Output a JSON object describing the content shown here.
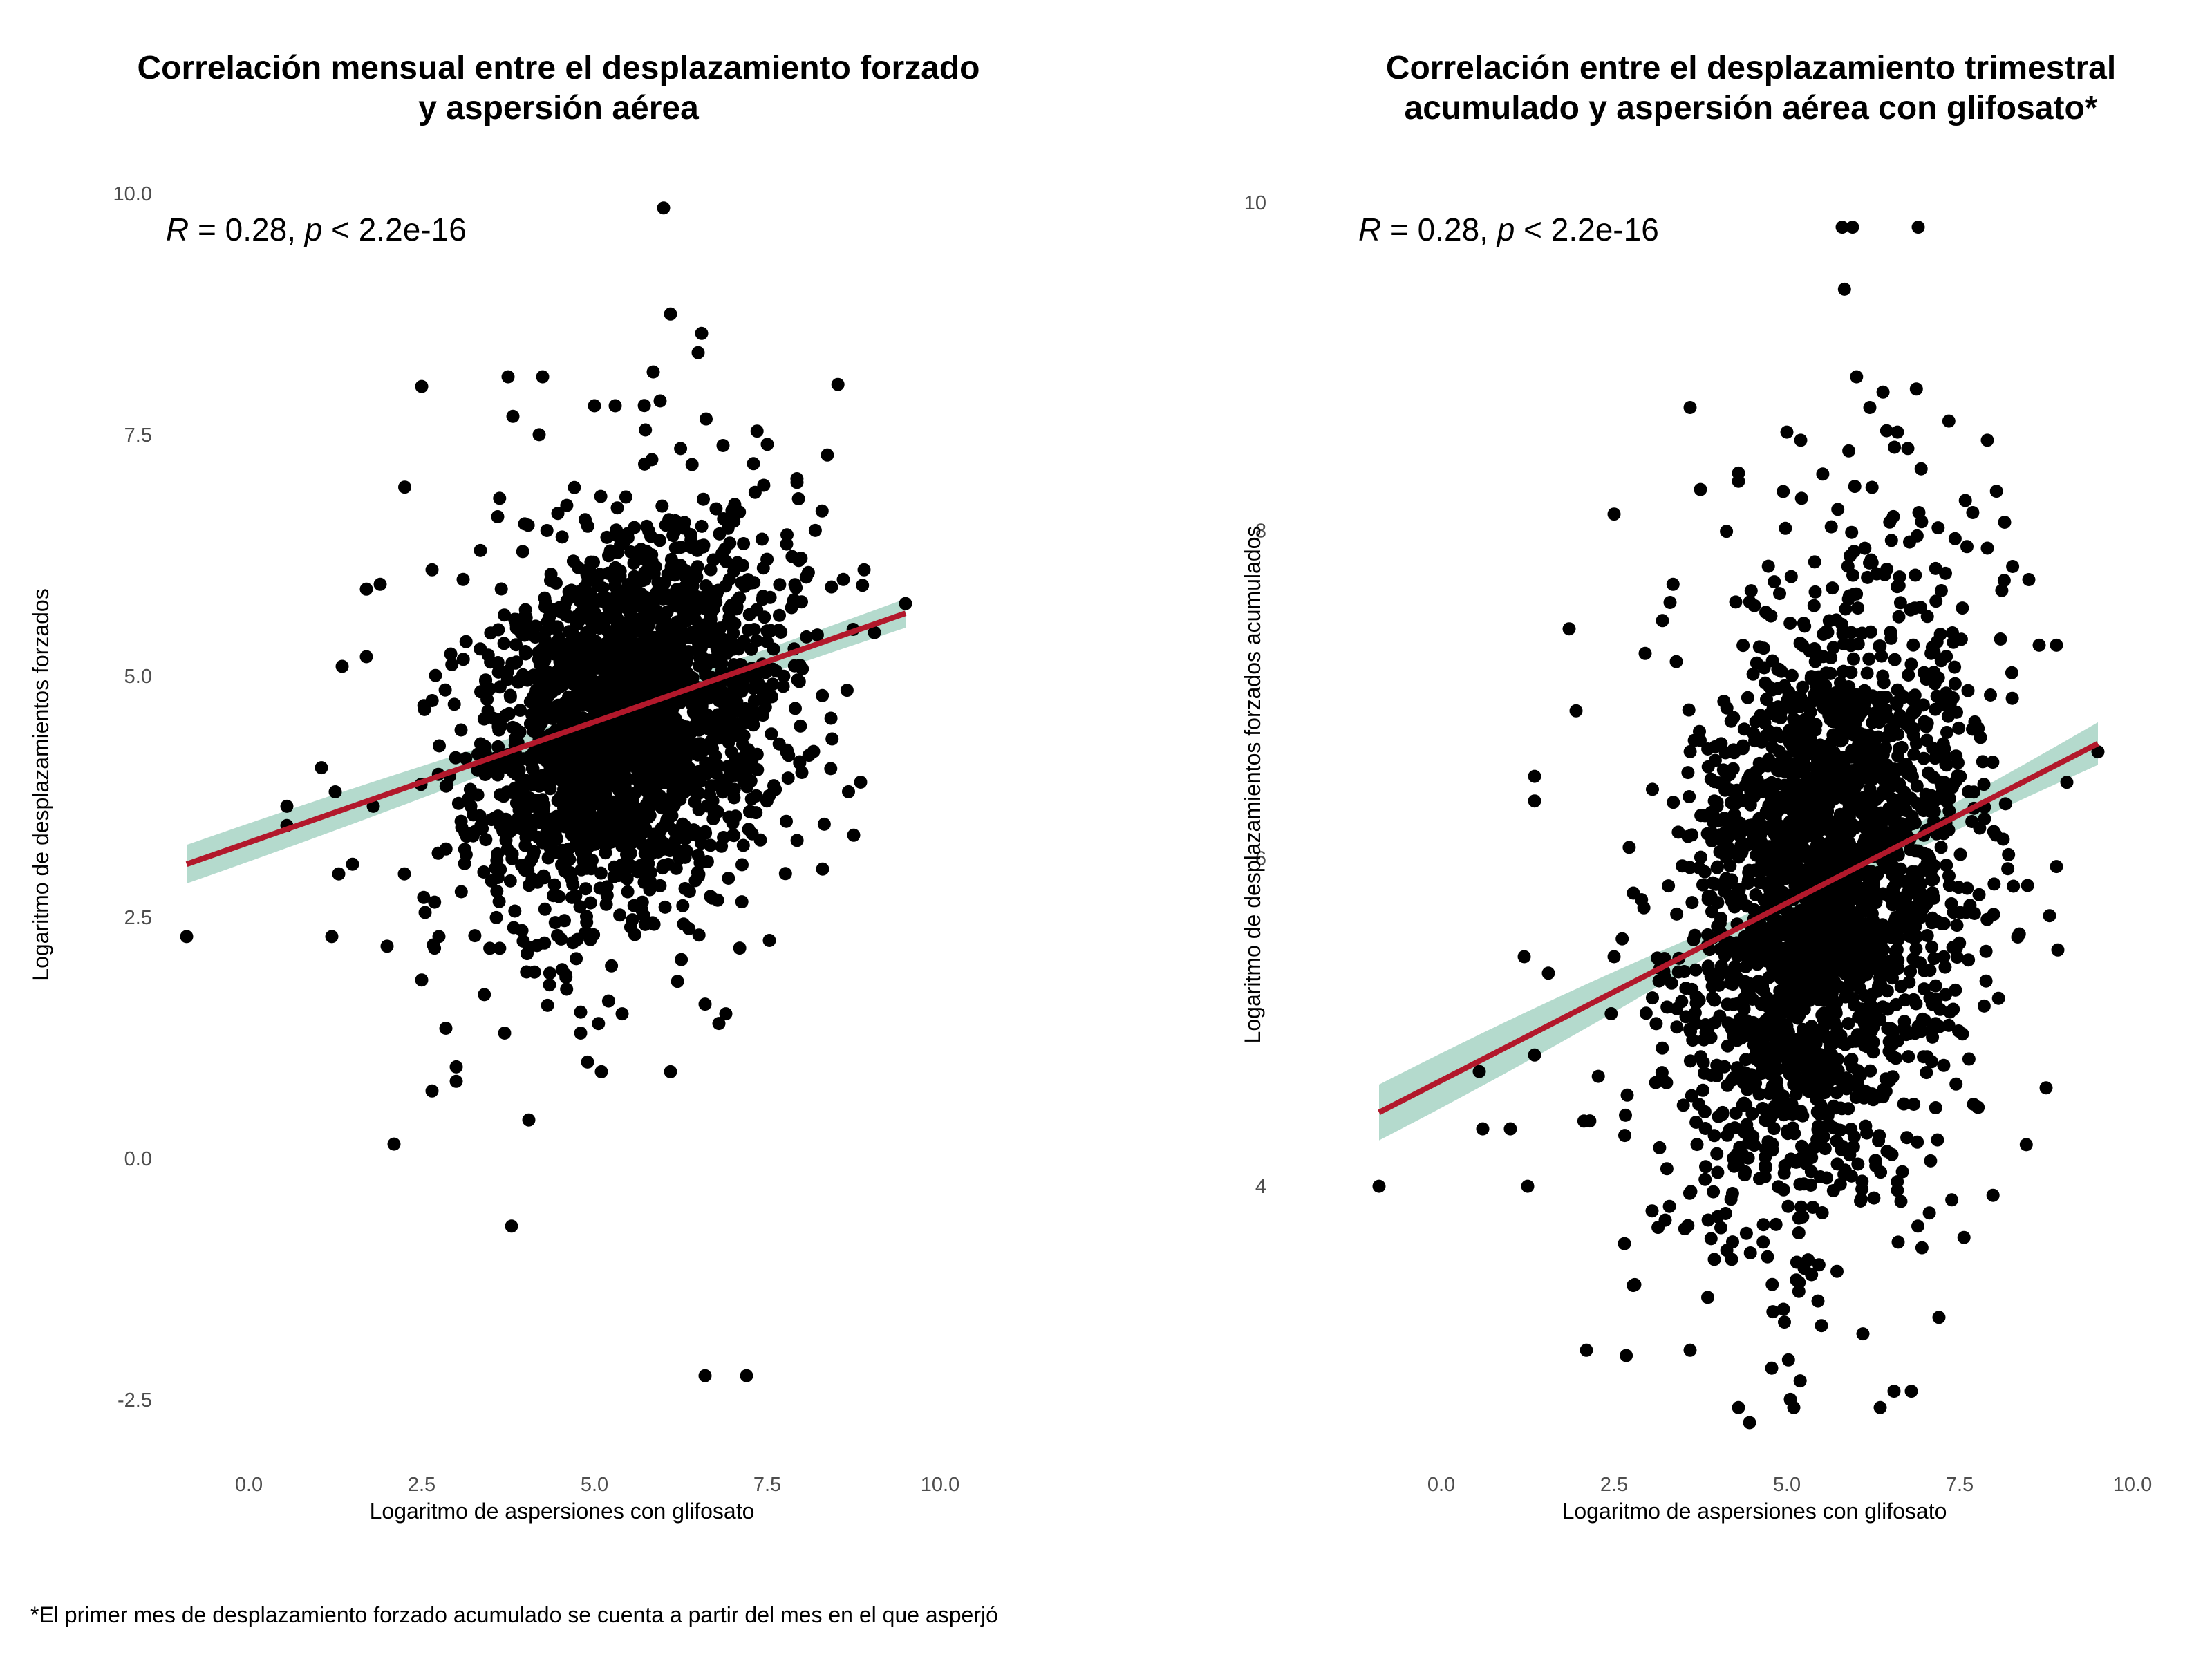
{
  "figure": {
    "footnote": "*El primer mes de desplazamiento forzado acumulado se cuenta a partir del mes en el que asperjó",
    "colors": {
      "points": "#000000",
      "regression_line": "#b2182b",
      "confidence_band": "#a7d3c4",
      "background": "#ffffff",
      "tick_text": "#4d4d4d"
    }
  },
  "chart_data": [
    {
      "type": "scatter",
      "title_lines": [
        "Correlación mensual entre el desplazamiento forzado",
        "y aspersión aérea"
      ],
      "xlabel": "Logaritmo de aspersiones con glifosato",
      "ylabel": "Logaritmo de desplazamientos forzados",
      "xlim": [
        -1.2,
        10.3
      ],
      "ylim": [
        -2.75,
        10.5
      ],
      "xticks": [
        "0.0",
        "2.5",
        "5.0",
        "7.5",
        "10.0"
      ],
      "xtick_values": [
        0,
        2.5,
        5,
        7.5,
        10
      ],
      "yticks": [
        "-2.5",
        "0.0",
        "2.5",
        "5.0",
        "7.5",
        "10.0"
      ],
      "ytick_values": [
        -2.5,
        0,
        2.5,
        5,
        7.5,
        10
      ],
      "grid": false,
      "annotation": {
        "R_symbol": "R",
        "R_text": " = 0.28, ",
        "p_symbol": "p",
        "p_text": " < 2.2e-16",
        "placement": "top-left"
      },
      "regression": {
        "x": [
          -0.9,
          9.5
        ],
        "y": [
          3.05,
          5.65
        ],
        "band_halfwidth": [
          0.2,
          0.12,
          0.15
        ]
      },
      "cluster": {
        "n": 2300,
        "mean_x": 5.5,
        "mean_y": 4.55,
        "sd_x": 1.05,
        "sd_y": 0.95,
        "slope": 0.25,
        "seed": 11
      },
      "points": [
        [
          6.0,
          9.85
        ],
        [
          6.1,
          8.75
        ],
        [
          6.55,
          8.55
        ],
        [
          6.5,
          8.35
        ],
        [
          5.85,
          8.15
        ],
        [
          3.75,
          8.1
        ],
        [
          4.25,
          8.1
        ],
        [
          2.5,
          8.0
        ],
        [
          5.95,
          7.85
        ],
        [
          5.0,
          7.8
        ],
        [
          5.3,
          7.8
        ],
        [
          4.2,
          7.5
        ],
        [
          0.55,
          3.65
        ],
        [
          0.55,
          3.45
        ],
        [
          -0.9,
          2.3
        ],
        [
          1.2,
          2.3
        ],
        [
          1.35,
          5.1
        ],
        [
          1.7,
          5.2
        ],
        [
          1.9,
          5.95
        ],
        [
          1.7,
          5.9
        ],
        [
          2.0,
          2.2
        ],
        [
          2.1,
          0.15
        ],
        [
          2.65,
          0.7
        ],
        [
          2.5,
          1.85
        ],
        [
          2.85,
          1.35
        ],
        [
          3.0,
          0.8
        ],
        [
          3.0,
          0.95
        ],
        [
          4.05,
          0.4
        ],
        [
          3.8,
          -0.7
        ],
        [
          5.1,
          0.9
        ],
        [
          6.1,
          0.9
        ],
        [
          6.6,
          1.6
        ],
        [
          6.8,
          1.4
        ],
        [
          6.9,
          1.5
        ],
        [
          6.6,
          -2.25
        ],
        [
          7.2,
          -2.25
        ],
        [
          8.85,
          3.9
        ],
        [
          8.75,
          3.35
        ],
        [
          8.3,
          3.0
        ],
        [
          9.5,
          5.75
        ],
        [
          9.05,
          5.45
        ],
        [
          1.3,
          2.95
        ],
        [
          1.5,
          3.05
        ],
        [
          1.05,
          4.05
        ],
        [
          1.25,
          3.8
        ],
        [
          1.8,
          3.65
        ],
        [
          2.25,
          2.95
        ],
        [
          2.55,
          2.55
        ],
        [
          2.75,
          2.3
        ],
        [
          3.7,
          1.3
        ],
        [
          4.35,
          1.8
        ],
        [
          4.8,
          1.3
        ],
        [
          4.9,
          1.0
        ],
        [
          5.4,
          1.5
        ],
        [
          7.4,
          3.3
        ],
        [
          8.0,
          4.0
        ],
        [
          8.6,
          6.0
        ],
        [
          8.9,
          6.1
        ],
        [
          7.5,
          7.4
        ],
        [
          7.3,
          7.2
        ],
        [
          3.1,
          6.0
        ],
        [
          2.65,
          6.1
        ],
        [
          3.6,
          6.65
        ],
        [
          3.35,
          6.3
        ]
      ]
    },
    {
      "type": "scatter",
      "title_lines": [
        "Correlación entre el desplazamiento trimestral",
        "acumulado y aspersión aérea con glifosato*"
      ],
      "xlabel": "Logaritmo de aspersiones con glifosato",
      "ylabel": "Logaritmo de desplazamientos forzados acumulados",
      "xlim": [
        -1.2,
        10.3
      ],
      "ylim": [
        2.55,
        10.35
      ],
      "xticks": [
        "0.0",
        "2.5",
        "5.0",
        "7.5",
        "10.0"
      ],
      "xtick_values": [
        0,
        2.5,
        5,
        7.5,
        10
      ],
      "yticks": [
        "4",
        "6",
        "8",
        "10"
      ],
      "ytick_values": [
        4,
        6,
        8,
        10
      ],
      "grid": false,
      "annotation": {
        "R_symbol": "R",
        "R_text": " = 0.28, ",
        "p_symbol": "p",
        "p_text": " < 2.2e-16",
        "placement": "top-left"
      },
      "regression": {
        "x": [
          -0.9,
          9.5
        ],
        "y": [
          4.45,
          6.7
        ],
        "band_halfwidth": [
          0.17,
          0.06,
          0.13
        ]
      },
      "cluster": {
        "n": 2300,
        "mean_x": 5.5,
        "mean_y": 5.75,
        "sd_x": 1.05,
        "sd_y": 0.9,
        "slope": 0.22,
        "seed": 29
      },
      "points": [
        [
          5.8,
          9.85
        ],
        [
          5.95,
          9.85
        ],
        [
          6.9,
          9.85
        ],
        [
          3.6,
          8.75
        ],
        [
          6.2,
          8.75
        ],
        [
          6.6,
          8.6
        ],
        [
          5.0,
          8.6
        ],
        [
          5.2,
          8.55
        ],
        [
          7.9,
          8.55
        ],
        [
          6.75,
          8.5
        ],
        [
          2.5,
          8.1
        ],
        [
          8.15,
          8.05
        ],
        [
          1.85,
          7.4
        ],
        [
          1.95,
          6.9
        ],
        [
          1.35,
          6.5
        ],
        [
          1.35,
          6.35
        ],
        [
          1.2,
          5.4
        ],
        [
          1.55,
          5.3
        ],
        [
          1.25,
          4.0
        ],
        [
          1.35,
          4.8
        ],
        [
          0.55,
          4.7
        ],
        [
          0.6,
          4.35
        ],
        [
          1.0,
          4.35
        ],
        [
          -0.9,
          4.0
        ],
        [
          2.1,
          3.0
        ],
        [
          3.6,
          3.0
        ],
        [
          4.3,
          2.65
        ],
        [
          5.05,
          2.7
        ],
        [
          5.1,
          2.65
        ],
        [
          6.35,
          2.65
        ],
        [
          6.55,
          2.75
        ],
        [
          6.8,
          2.75
        ],
        [
          7.2,
          3.2
        ],
        [
          5.45,
          3.3
        ],
        [
          5.5,
          3.15
        ],
        [
          6.1,
          3.1
        ],
        [
          7.7,
          4.5
        ],
        [
          8.75,
          4.6
        ],
        [
          8.9,
          5.95
        ],
        [
          8.8,
          5.65
        ],
        [
          9.5,
          6.65
        ],
        [
          8.9,
          7.3
        ],
        [
          8.5,
          7.7
        ],
        [
          8.65,
          7.3
        ],
        [
          2.5,
          5.4
        ],
        [
          2.65,
          3.65
        ],
        [
          2.8,
          3.4
        ],
        [
          3.05,
          3.85
        ],
        [
          4.95,
          3.25
        ],
        [
          5.25,
          3.5
        ],
        [
          3.4,
          7.2
        ],
        [
          3.2,
          7.45
        ],
        [
          2.95,
          7.25
        ],
        [
          3.75,
          8.25
        ],
        [
          4.3,
          8.35
        ],
        [
          4.3,
          8.3
        ]
      ]
    }
  ]
}
